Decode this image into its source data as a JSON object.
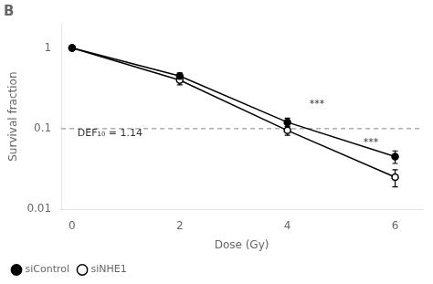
{
  "chart_data": {
    "type": "line",
    "title": "B",
    "x_label": "Dose (Gy)",
    "y_label": "Survival fraction",
    "xlim": [
      -0.2,
      6.5
    ],
    "ylim": [
      0.01,
      2.0
    ],
    "xticks": [
      0,
      2,
      4,
      6
    ],
    "yticks": [
      0.01,
      0.1,
      1
    ],
    "log": "y",
    "grid": false,
    "legend": "lower left",
    "x": [
      0,
      2,
      4,
      6
    ],
    "series": [
      {
        "name": "siControl",
        "color": "#000000",
        "marker": "circle",
        "line_style": "solid",
        "values": [
          1.0,
          0.45,
          0.12,
          0.045
        ],
        "errors": [
          0.03,
          0.04,
          0.015,
          0.008
        ]
      },
      {
        "name": "siNHE1",
        "color": "#000000",
        "marker": "open-circle",
        "line_style": "solid",
        "values": [
          1.0,
          0.4,
          0.095,
          0.025
        ],
        "errors": [
          0.03,
          0.05,
          0.012,
          0.006
        ]
      }
    ],
    "annotations": [
      {
        "type": "hline",
        "y": 0.1,
        "color": "gray",
        "line_style": "dashed"
      },
      {
        "type": "text",
        "text": "DEF₁₀ = 1.14",
        "x": 0.1,
        "y": 0.076,
        "align": "left"
      },
      {
        "type": "text",
        "text": "***",
        "x": 4.55,
        "y": 0.175,
        "align": "center"
      },
      {
        "type": "text",
        "text": "***",
        "x": 5.55,
        "y": 0.058,
        "align": "center"
      }
    ]
  }
}
